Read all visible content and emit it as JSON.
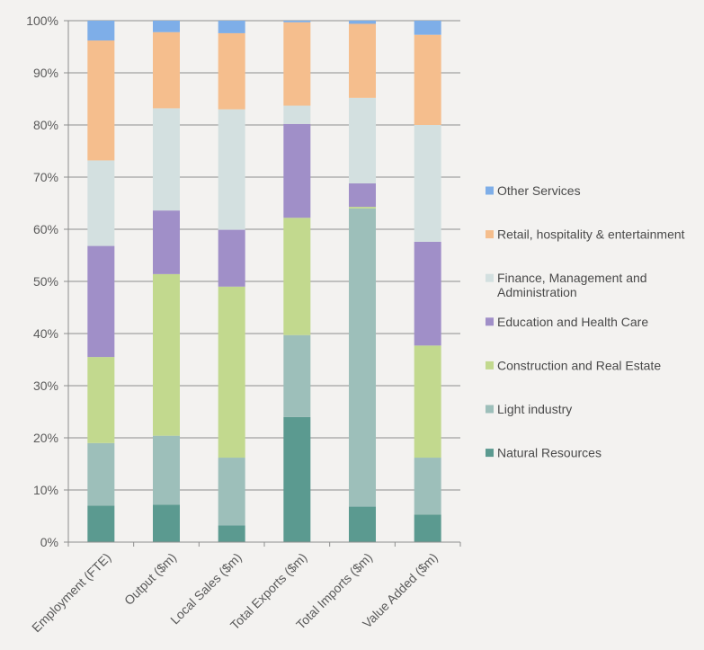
{
  "chart_data": {
    "type": "bar",
    "stacked": true,
    "title": "",
    "xlabel": "",
    "ylabel": "",
    "ylim": [
      0,
      100
    ],
    "y_tick_labels": [
      "0%",
      "10%",
      "20%",
      "30%",
      "40%",
      "50%",
      "60%",
      "70%",
      "80%",
      "90%",
      "100%"
    ],
    "grid": true,
    "legend_placement": "right",
    "categories": [
      "Employment (FTE)",
      "Output ($m)",
      "Local Sales ($m)",
      "Total Exports ($m)",
      "Total Imports ($m)",
      "Value Added ($m)"
    ],
    "series": [
      {
        "name": "Natural Resources",
        "color": "#5b9a90",
        "values": [
          7,
          7.2,
          3.2,
          24,
          6.8,
          5.3
        ]
      },
      {
        "name": "Light industry",
        "color": "#9dbfba",
        "values": [
          12,
          13.2,
          13,
          15.7,
          57.2,
          10.9
        ]
      },
      {
        "name": "Construction and Real Estate",
        "color": "#c2d98e",
        "values": [
          16.5,
          31,
          32.8,
          22.5,
          0.3,
          21.5
        ]
      },
      {
        "name": "Education and Health Care",
        "color": "#a08fc8",
        "values": [
          21.3,
          12.2,
          10.9,
          18,
          4.5,
          19.9
        ]
      },
      {
        "name": "Finance, Management and Administration",
        "color": "#d3e0e0",
        "values": [
          16.4,
          19.6,
          23.1,
          3.5,
          16.4,
          22.4
        ]
      },
      {
        "name": "Retail, hospitality & entertainment",
        "color": "#f5be8d",
        "values": [
          23,
          14.6,
          14.6,
          16,
          14.2,
          17.3
        ]
      },
      {
        "name": "Other Services",
        "color": "#7eaee8",
        "values": [
          3.8,
          2.2,
          2.4,
          0.3,
          0.6,
          2.7
        ]
      }
    ]
  }
}
